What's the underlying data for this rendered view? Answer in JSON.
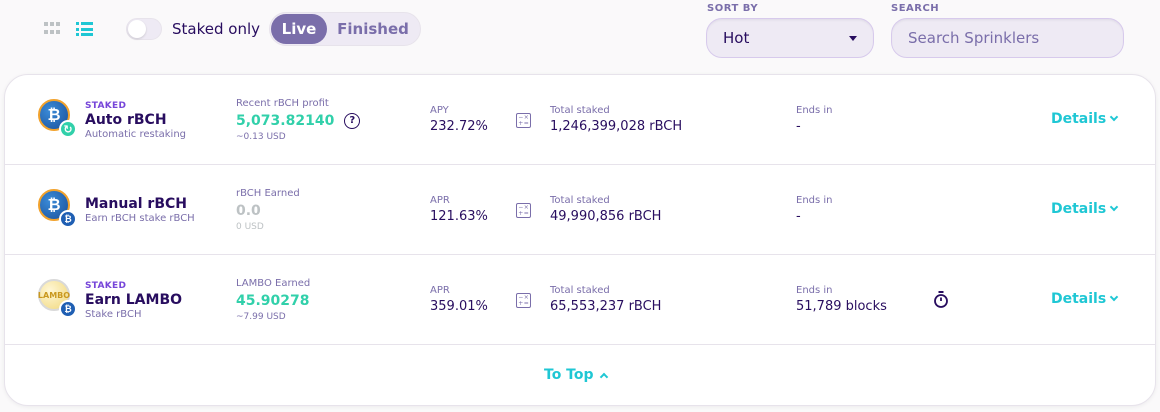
{
  "toolbar": {
    "staked_only_label": "Staked only",
    "staked_only_on": false,
    "tabs": [
      {
        "label": "Live",
        "active": true
      },
      {
        "label": "Finished",
        "active": false
      }
    ],
    "sort_label": "SORT BY",
    "sort_value": "Hot",
    "search_label": "SEARCH",
    "search_placeholder": "Search Sprinklers"
  },
  "pools": [
    {
      "tag": "STAKED",
      "name": "Auto rBCH",
      "subtitle": "Automatic restaking",
      "earn_label": "Recent rBCH profit",
      "earn_value": "5,073.82140",
      "earn_usd": "~0.13 USD",
      "rate_label": "APY",
      "rate_value": "232.72%",
      "total_label": "Total staked",
      "total_value": "1,246,399,028 rBCH",
      "ends_label": "Ends in",
      "ends_value": "-",
      "details_label": "Details",
      "coin_symbol": "₿",
      "sub_symbol": "↻"
    },
    {
      "tag": "",
      "name": "Manual rBCH",
      "subtitle": "Earn rBCH stake rBCH",
      "earn_label": "rBCH Earned",
      "earn_value": "0.0",
      "earn_usd": "0 USD",
      "rate_label": "APR",
      "rate_value": "121.63%",
      "total_label": "Total staked",
      "total_value": "49,990,856 rBCH",
      "ends_label": "Ends in",
      "ends_value": "-",
      "details_label": "Details",
      "coin_symbol": "₿",
      "sub_symbol": "₿"
    },
    {
      "tag": "STAKED",
      "name": "Earn LAMBO",
      "subtitle": "Stake rBCH",
      "earn_label": "LAMBO Earned",
      "earn_value": "45.90278",
      "earn_usd": "~7.99 USD",
      "rate_label": "APR",
      "rate_value": "359.01%",
      "total_label": "Total staked",
      "total_value": "65,553,237 rBCH",
      "ends_label": "Ends in",
      "ends_value": "51,789 blocks",
      "details_label": "Details",
      "coin_symbol": "LAMBO",
      "sub_symbol": "₿"
    }
  ],
  "to_top_label": "To Top",
  "colors": {
    "primary": "#1fc7d4",
    "secondary": "#7645d9",
    "text": "#280d5f",
    "text_subtle": "#7a6eaa",
    "success": "#31d0aa",
    "tab_active_bg": "#7a6eaa",
    "disabled": "#bdc2c4"
  }
}
